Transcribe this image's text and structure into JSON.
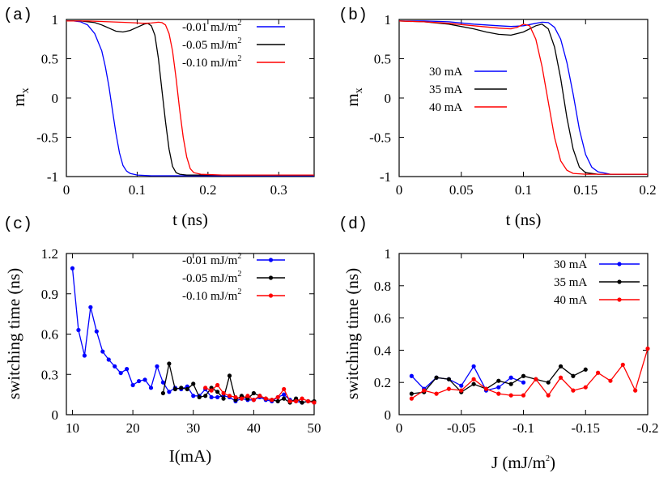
{
  "chart_data": [
    {
      "panel": "(a)",
      "type": "line",
      "xlabel": "t (ns)",
      "ylabel": "m",
      "ylabel_sub": "x",
      "xlim": [
        0,
        0.35
      ],
      "ylim": [
        -1,
        1
      ],
      "xticks": [
        0,
        0.1,
        0.2,
        0.3
      ],
      "xtick_labels": [
        "0",
        "0.1",
        "0.2",
        "0.3"
      ],
      "yticks": [
        -1,
        -0.5,
        0,
        0.5,
        1
      ],
      "ytick_labels": [
        "-1",
        "-0.5",
        "0",
        "0.5",
        "1"
      ],
      "legend_position": "top-right",
      "series": [
        {
          "name": "-0.01 mJ/m",
          "sup": "2",
          "color": "#0000ff",
          "x": [
            0,
            0.01,
            0.02,
            0.03,
            0.04,
            0.05,
            0.055,
            0.06,
            0.065,
            0.07,
            0.075,
            0.08,
            0.085,
            0.09,
            0.1,
            0.12,
            0.15,
            0.2,
            0.35
          ],
          "y": [
            0.98,
            0.98,
            0.97,
            0.93,
            0.82,
            0.6,
            0.4,
            0.15,
            -0.15,
            -0.45,
            -0.7,
            -0.86,
            -0.93,
            -0.96,
            -0.98,
            -0.99,
            -0.99,
            -0.99,
            -0.99
          ]
        },
        {
          "name": "-0.05 mJ/m",
          "sup": "2",
          "color": "#000000",
          "x": [
            0,
            0.02,
            0.04,
            0.05,
            0.06,
            0.07,
            0.08,
            0.09,
            0.1,
            0.11,
            0.115,
            0.12,
            0.125,
            0.13,
            0.135,
            0.14,
            0.145,
            0.15,
            0.155,
            0.16,
            0.17,
            0.2,
            0.35
          ],
          "y": [
            0.98,
            0.98,
            0.96,
            0.93,
            0.89,
            0.85,
            0.84,
            0.86,
            0.9,
            0.94,
            0.95,
            0.92,
            0.8,
            0.5,
            0.1,
            -0.3,
            -0.65,
            -0.87,
            -0.95,
            -0.97,
            -0.98,
            -0.98,
            -0.98
          ]
        },
        {
          "name": "-0.10 mJ/m",
          "sup": "2",
          "color": "#ff0000",
          "x": [
            0,
            0.03,
            0.06,
            0.09,
            0.11,
            0.12,
            0.13,
            0.135,
            0.14,
            0.145,
            0.15,
            0.155,
            0.16,
            0.165,
            0.17,
            0.175,
            0.18,
            0.19,
            0.22,
            0.35
          ],
          "y": [
            0.98,
            0.98,
            0.97,
            0.96,
            0.95,
            0.955,
            0.965,
            0.96,
            0.93,
            0.82,
            0.6,
            0.25,
            -0.15,
            -0.5,
            -0.75,
            -0.9,
            -0.95,
            -0.97,
            -0.98,
            -0.98
          ]
        }
      ]
    },
    {
      "panel": "(b)",
      "type": "line",
      "xlabel": "t (ns)",
      "ylabel": "m",
      "ylabel_sub": "x",
      "xlim": [
        0,
        0.2
      ],
      "ylim": [
        -1,
        1
      ],
      "xticks": [
        0,
        0.05,
        0.1,
        0.15,
        0.2
      ],
      "xtick_labels": [
        "0",
        "0.05",
        "0.1",
        "0.15",
        "0.2"
      ],
      "yticks": [
        -1,
        -0.5,
        0,
        0.5,
        1
      ],
      "ytick_labels": [
        "-1",
        "-0.5",
        "0",
        "0.5",
        "1"
      ],
      "legend_position": "middle-left",
      "series": [
        {
          "name": "30 mA",
          "color": "#0000ff",
          "x": [
            0,
            0.02,
            0.04,
            0.06,
            0.08,
            0.09,
            0.1,
            0.11,
            0.115,
            0.12,
            0.125,
            0.13,
            0.135,
            0.14,
            0.145,
            0.15,
            0.155,
            0.16,
            0.17,
            0.2
          ],
          "y": [
            0.98,
            0.98,
            0.97,
            0.94,
            0.92,
            0.91,
            0.92,
            0.95,
            0.965,
            0.96,
            0.9,
            0.75,
            0.45,
            0.05,
            -0.4,
            -0.72,
            -0.88,
            -0.94,
            -0.97,
            -0.97
          ]
        },
        {
          "name": "35 mA",
          "color": "#000000",
          "x": [
            0,
            0.02,
            0.04,
            0.06,
            0.07,
            0.08,
            0.09,
            0.1,
            0.11,
            0.115,
            0.12,
            0.125,
            0.13,
            0.135,
            0.14,
            0.145,
            0.15,
            0.16,
            0.2
          ],
          "y": [
            0.98,
            0.97,
            0.94,
            0.88,
            0.84,
            0.81,
            0.8,
            0.84,
            0.92,
            0.94,
            0.88,
            0.65,
            0.25,
            -0.25,
            -0.65,
            -0.88,
            -0.95,
            -0.97,
            -0.97
          ]
        },
        {
          "name": "40 mA",
          "color": "#ff0000",
          "x": [
            0,
            0.02,
            0.04,
            0.06,
            0.08,
            0.09,
            0.095,
            0.1,
            0.105,
            0.11,
            0.115,
            0.12,
            0.125,
            0.13,
            0.135,
            0.14,
            0.15,
            0.2
          ],
          "y": [
            0.98,
            0.97,
            0.95,
            0.92,
            0.89,
            0.88,
            0.9,
            0.94,
            0.92,
            0.75,
            0.4,
            -0.05,
            -0.5,
            -0.8,
            -0.92,
            -0.96,
            -0.97,
            -0.97
          ]
        }
      ]
    },
    {
      "panel": "(c)",
      "type": "line",
      "xlabel": "I(mA)",
      "ylabel": "switching time (ns)",
      "xlim": [
        9,
        50
      ],
      "ylim": [
        0,
        1.2
      ],
      "xticks": [
        10,
        20,
        30,
        40,
        50
      ],
      "xtick_labels": [
        "10",
        "20",
        "30",
        "40",
        "50"
      ],
      "yticks": [
        0,
        0.3,
        0.6,
        0.9,
        1.2
      ],
      "ytick_labels": [
        "0",
        "0.3",
        "0.6",
        "0.9",
        "1.2"
      ],
      "legend_position": "top-right",
      "series": [
        {
          "name": "-0.01 mJ/m",
          "sup": "2",
          "color": "#0000ff",
          "x": [
            10,
            11,
            12,
            13,
            14,
            15,
            16,
            17,
            18,
            19,
            20,
            21,
            22,
            23,
            24,
            25,
            26,
            27,
            28,
            29,
            30,
            31,
            32,
            33,
            34,
            35,
            36,
            37,
            38,
            39,
            40,
            41,
            42,
            43,
            44,
            45,
            46,
            47,
            48,
            49,
            50
          ],
          "y": [
            1.09,
            0.63,
            0.44,
            0.8,
            0.62,
            0.47,
            0.41,
            0.36,
            0.31,
            0.34,
            0.22,
            0.25,
            0.26,
            0.2,
            0.36,
            0.24,
            0.17,
            0.2,
            0.19,
            0.21,
            0.14,
            0.14,
            0.19,
            0.13,
            0.13,
            0.14,
            0.13,
            0.1,
            0.12,
            0.11,
            0.11,
            0.13,
            0.11,
            0.1,
            0.13,
            0.15,
            0.11,
            0.1,
            0.09,
            0.1,
            0.09
          ]
        },
        {
          "name": "-0.05 mJ/m",
          "sup": "2",
          "color": "#000000",
          "x": [
            25,
            26,
            27,
            28,
            29,
            30,
            31,
            32,
            33,
            34,
            35,
            36,
            37,
            38,
            39,
            40,
            41,
            42,
            43,
            44,
            45,
            46,
            47,
            48,
            49,
            50
          ],
          "y": [
            0.16,
            0.38,
            0.19,
            0.2,
            0.19,
            0.23,
            0.13,
            0.14,
            0.2,
            0.17,
            0.12,
            0.29,
            0.11,
            0.14,
            0.12,
            0.16,
            0.14,
            0.12,
            0.11,
            0.1,
            0.12,
            0.09,
            0.12,
            0.09,
            0.1,
            0.1
          ]
        },
        {
          "name": "-0.10 mJ/m",
          "sup": "2",
          "color": "#ff0000",
          "x": [
            32,
            33,
            34,
            35,
            36,
            37,
            38,
            39,
            40,
            41,
            42,
            43,
            44,
            45,
            46,
            47,
            48,
            49,
            50
          ],
          "y": [
            0.2,
            0.18,
            0.22,
            0.16,
            0.14,
            0.13,
            0.12,
            0.14,
            0.11,
            0.14,
            0.12,
            0.11,
            0.13,
            0.19,
            0.1,
            0.1,
            0.12,
            0.1,
            0.09
          ]
        }
      ]
    },
    {
      "panel": "(d)",
      "type": "line",
      "xlabel": "J (mJ/m",
      "xlabel_sup": "2",
      "xlabel_end": ")",
      "ylabel": "switching time (ns)",
      "xlim": [
        0,
        -0.2
      ],
      "ylim": [
        0,
        1
      ],
      "xticks": [
        0,
        -0.05,
        -0.1,
        -0.15,
        -0.2
      ],
      "xtick_labels": [
        "0",
        "-0.05",
        "-0.1",
        "-0.15",
        "-0.2"
      ],
      "yticks": [
        0,
        0.2,
        0.4,
        0.6,
        0.8,
        1
      ],
      "ytick_labels": [
        "0",
        "0.2",
        "0.4",
        "0.6",
        "0.8",
        "1"
      ],
      "legend_position": "top-right",
      "series": [
        {
          "name": "30 mA",
          "color": "#0000ff",
          "x": [
            -0.01,
            -0.02,
            -0.03,
            -0.04,
            -0.05,
            -0.06,
            -0.07,
            -0.08,
            -0.09,
            -0.1
          ],
          "y": [
            0.24,
            0.16,
            0.23,
            0.22,
            0.18,
            0.3,
            0.15,
            0.17,
            0.23,
            0.2
          ]
        },
        {
          "name": "35 mA",
          "color": "#000000",
          "x": [
            -0.01,
            -0.02,
            -0.03,
            -0.04,
            -0.05,
            -0.06,
            -0.07,
            -0.08,
            -0.09,
            -0.1,
            -0.11,
            -0.12,
            -0.13,
            -0.14,
            -0.15
          ],
          "y": [
            0.13,
            0.14,
            0.23,
            0.22,
            0.14,
            0.19,
            0.16,
            0.21,
            0.19,
            0.24,
            0.22,
            0.2,
            0.3,
            0.24,
            0.28
          ]
        },
        {
          "name": "40 mA",
          "color": "#ff0000",
          "x": [
            -0.01,
            -0.02,
            -0.03,
            -0.04,
            -0.05,
            -0.06,
            -0.07,
            -0.08,
            -0.09,
            -0.1,
            -0.11,
            -0.12,
            -0.13,
            -0.14,
            -0.15,
            -0.16,
            -0.17,
            -0.18,
            -0.19,
            -0.2
          ],
          "y": [
            0.1,
            0.15,
            0.13,
            0.16,
            0.15,
            0.22,
            0.16,
            0.13,
            0.12,
            0.12,
            0.22,
            0.12,
            0.23,
            0.15,
            0.17,
            0.26,
            0.21,
            0.31,
            0.15,
            0.41
          ]
        }
      ]
    }
  ]
}
